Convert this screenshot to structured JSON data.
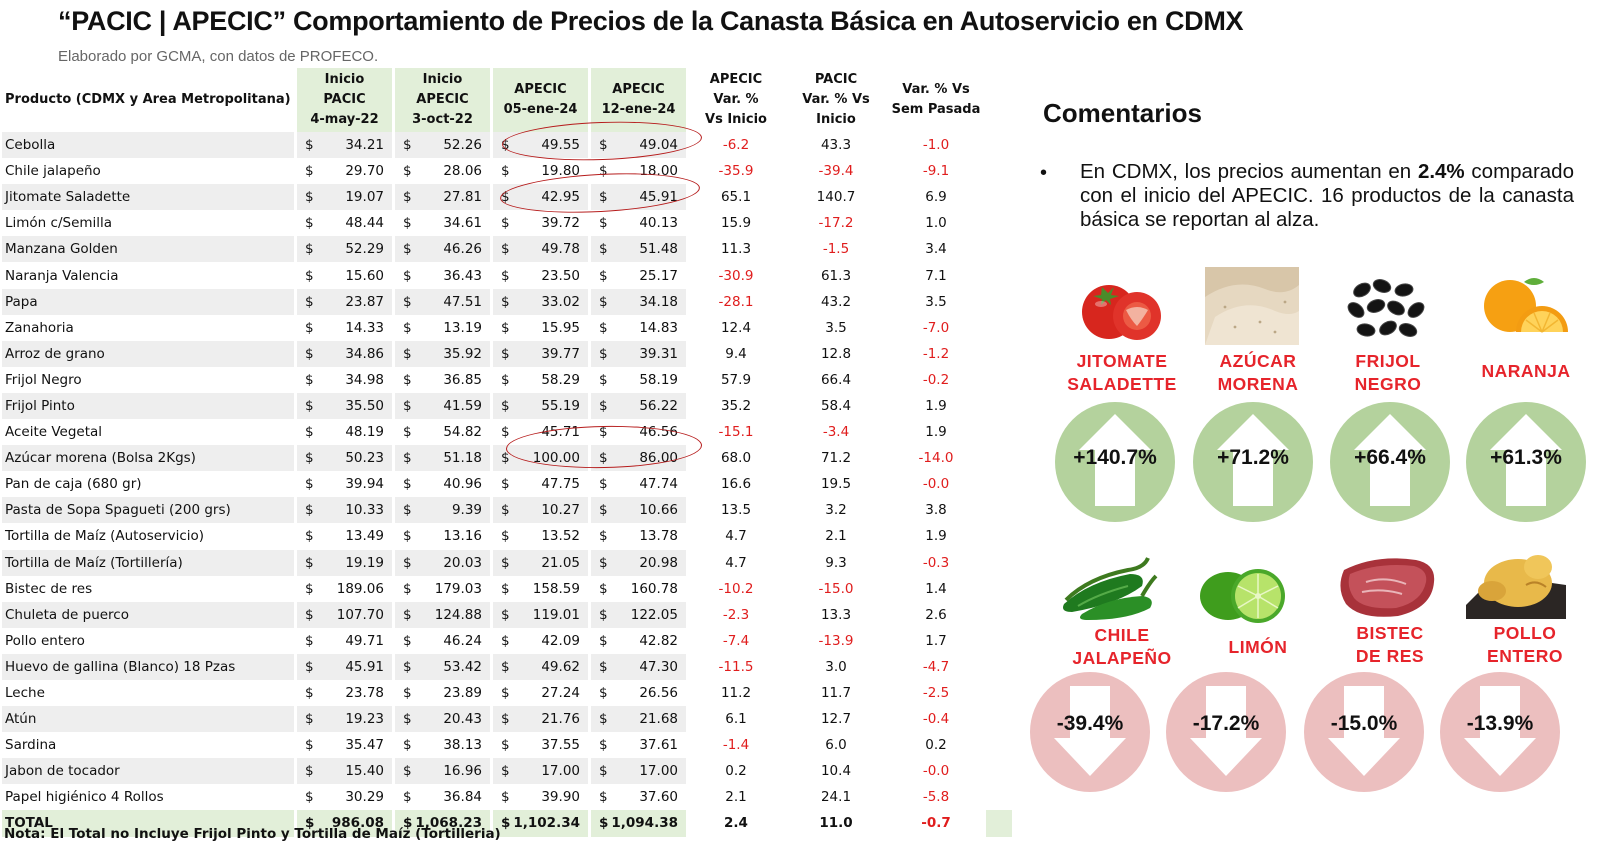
{
  "header": {
    "title": "“PACIC | APECIC” Comportamiento de Precios de la Canasta Básica en Autoservicio en CDMX",
    "subtitle": "Elaborado por GCMA, con datos de PROFECO."
  },
  "table": {
    "headers": {
      "product": "Producto (CDMX y Area Metropolitana)",
      "pacic": [
        "Inicio",
        "PACIC",
        "4-may-22"
      ],
      "apecic_start": [
        "Inicio",
        "APECIC",
        "3-oct-22"
      ],
      "apecic_05": [
        "APECIC",
        "05-ene-24"
      ],
      "apecic_12": [
        "APECIC",
        "12-ene-24"
      ],
      "var_apecic": [
        "APECIC",
        "Var. %",
        "Vs  Inicio"
      ],
      "var_pacic": [
        "PACIC",
        "Var. % Vs",
        "Inicio"
      ],
      "var_week": [
        "Var. % Vs",
        "Sem Pasada"
      ]
    },
    "currency": "$",
    "rows": [
      {
        "product": "Cebolla",
        "pacic": "34.21",
        "apecic_start": "52.26",
        "apecic_05": "49.55",
        "apecic_12": "49.04",
        "var_apecic": "-6.2",
        "var_pacic": "43.3",
        "var_week": "-1.0"
      },
      {
        "product": "Chile jalapeño",
        "pacic": "29.70",
        "apecic_start": "28.06",
        "apecic_05": "19.80",
        "apecic_12": "18.00",
        "var_apecic": "-35.9",
        "var_pacic": "-39.4",
        "var_week": "-9.1"
      },
      {
        "product": "Jitomate Saladette",
        "pacic": "19.07",
        "apecic_start": "27.81",
        "apecic_05": "42.95",
        "apecic_12": "45.91",
        "var_apecic": "65.1",
        "var_pacic": "140.7",
        "var_week": "6.9"
      },
      {
        "product": "Limón c/Semilla",
        "pacic": "48.44",
        "apecic_start": "34.61",
        "apecic_05": "39.72",
        "apecic_12": "40.13",
        "var_apecic": "15.9",
        "var_pacic": "-17.2",
        "var_week": "1.0"
      },
      {
        "product": "Manzana Golden",
        "pacic": "52.29",
        "apecic_start": "46.26",
        "apecic_05": "49.78",
        "apecic_12": "51.48",
        "var_apecic": "11.3",
        "var_pacic": "-1.5",
        "var_week": "3.4"
      },
      {
        "product": "Naranja Valencia",
        "pacic": "15.60",
        "apecic_start": "36.43",
        "apecic_05": "23.50",
        "apecic_12": "25.17",
        "var_apecic": "-30.9",
        "var_pacic": "61.3",
        "var_week": "7.1"
      },
      {
        "product": "Papa",
        "pacic": "23.87",
        "apecic_start": "47.51",
        "apecic_05": "33.02",
        "apecic_12": "34.18",
        "var_apecic": "-28.1",
        "var_pacic": "43.2",
        "var_week": "3.5"
      },
      {
        "product": "Zanahoria",
        "pacic": "14.33",
        "apecic_start": "13.19",
        "apecic_05": "15.95",
        "apecic_12": "14.83",
        "var_apecic": "12.4",
        "var_pacic": "3.5",
        "var_week": "-7.0"
      },
      {
        "product": "Arroz de grano",
        "pacic": "34.86",
        "apecic_start": "35.92",
        "apecic_05": "39.77",
        "apecic_12": "39.31",
        "var_apecic": "9.4",
        "var_pacic": "12.8",
        "var_week": "-1.2"
      },
      {
        "product": "Frijol Negro",
        "pacic": "34.98",
        "apecic_start": "36.85",
        "apecic_05": "58.29",
        "apecic_12": "58.19",
        "var_apecic": "57.9",
        "var_pacic": "66.4",
        "var_week": "-0.2"
      },
      {
        "product": "Frijol Pinto",
        "pacic": "35.50",
        "apecic_start": "41.59",
        "apecic_05": "55.19",
        "apecic_12": "56.22",
        "var_apecic": "35.2",
        "var_pacic": "58.4",
        "var_week": "1.9"
      },
      {
        "product": "Aceite Vegetal",
        "pacic": "48.19",
        "apecic_start": "54.82",
        "apecic_05": "45.71",
        "apecic_12": "46.56",
        "var_apecic": "-15.1",
        "var_pacic": "-3.4",
        "var_week": "1.9"
      },
      {
        "product": "Azúcar morena (Bolsa 2Kgs)",
        "pacic": "50.23",
        "apecic_start": "51.18",
        "apecic_05": "100.00",
        "apecic_12": "86.00",
        "var_apecic": "68.0",
        "var_pacic": "71.2",
        "var_week": "-14.0"
      },
      {
        "product": "Pan de caja (680 gr)",
        "pacic": "39.94",
        "apecic_start": "40.96",
        "apecic_05": "47.75",
        "apecic_12": "47.74",
        "var_apecic": "16.6",
        "var_pacic": "19.5",
        "var_week": "-0.0"
      },
      {
        "product": "Pasta de Sopa Spagueti (200 grs)",
        "pacic": "10.33",
        "apecic_start": "9.39",
        "apecic_05": "10.27",
        "apecic_12": "10.66",
        "var_apecic": "13.5",
        "var_pacic": "3.2",
        "var_week": "3.8"
      },
      {
        "product": "Tortilla de Maíz (Autoservicio)",
        "pacic": "13.49",
        "apecic_start": "13.16",
        "apecic_05": "13.52",
        "apecic_12": "13.78",
        "var_apecic": "4.7",
        "var_pacic": "2.1",
        "var_week": "1.9"
      },
      {
        "product": "Tortilla de Maíz (Tortillería)",
        "pacic": "19.19",
        "apecic_start": "20.03",
        "apecic_05": "21.05",
        "apecic_12": "20.98",
        "var_apecic": "4.7",
        "var_pacic": "9.3",
        "var_week": "-0.3"
      },
      {
        "product": "Bistec de res",
        "pacic": "189.06",
        "apecic_start": "179.03",
        "apecic_05": "158.59",
        "apecic_12": "160.78",
        "var_apecic": "-10.2",
        "var_pacic": "-15.0",
        "var_week": "1.4"
      },
      {
        "product": "Chuleta de puerco",
        "pacic": "107.70",
        "apecic_start": "124.88",
        "apecic_05": "119.01",
        "apecic_12": "122.05",
        "var_apecic": "-2.3",
        "var_pacic": "13.3",
        "var_week": "2.6"
      },
      {
        "product": "Pollo entero",
        "pacic": "49.71",
        "apecic_start": "46.24",
        "apecic_05": "42.09",
        "apecic_12": "42.82",
        "var_apecic": "-7.4",
        "var_pacic": "-13.9",
        "var_week": "1.7"
      },
      {
        "product": "Huevo de gallina (Blanco) 18 Pzas",
        "pacic": "45.91",
        "apecic_start": "53.42",
        "apecic_05": "49.62",
        "apecic_12": "47.30",
        "var_apecic": "-11.5",
        "var_pacic": "3.0",
        "var_week": "-4.7"
      },
      {
        "product": "Leche",
        "pacic": "23.78",
        "apecic_start": "23.89",
        "apecic_05": "27.24",
        "apecic_12": "26.56",
        "var_apecic": "11.2",
        "var_pacic": "11.7",
        "var_week": "-2.5"
      },
      {
        "product": "Atún",
        "pacic": "19.23",
        "apecic_start": "20.43",
        "apecic_05": "21.76",
        "apecic_12": "21.68",
        "var_apecic": "6.1",
        "var_pacic": "12.7",
        "var_week": "-0.4"
      },
      {
        "product": "Sardina",
        "pacic": "35.47",
        "apecic_start": "38.13",
        "apecic_05": "37.55",
        "apecic_12": "37.61",
        "var_apecic": "-1.4",
        "var_pacic": "6.0",
        "var_week": "0.2"
      },
      {
        "product": "Jabon de tocador",
        "pacic": "15.40",
        "apecic_start": "16.96",
        "apecic_05": "17.00",
        "apecic_12": "17.00",
        "var_apecic": "0.2",
        "var_pacic": "10.4",
        "var_week": "-0.0"
      },
      {
        "product": "Papel higiénico 4 Rollos",
        "pacic": "30.29",
        "apecic_start": "36.84",
        "apecic_05": "39.90",
        "apecic_12": "37.60",
        "var_apecic": "2.1",
        "var_pacic": "24.1",
        "var_week": "-5.8"
      }
    ],
    "total": {
      "product": "TOTAL",
      "pacic": "986.08",
      "apecic_start": "1,068.23",
      "apecic_05": "1,102.34",
      "apecic_12": "1,094.38",
      "var_apecic": "2.4",
      "var_pacic": "11.0",
      "var_week": "-0.7"
    },
    "note": "Nota: El Total no Incluye Frijol Pinto y Tortilla de Maíz (Tortilleria)"
  },
  "comments": {
    "title": "Comentarios",
    "bullet": "•",
    "text_before": "En CDMX, los precios aumentan en ",
    "highlight": "2.4%",
    "text_after": " comparado con el inicio del APECIC. 16 productos de la canasta básica se reportan al alza."
  },
  "colors": {
    "negative": "#e01d1d",
    "label_red": "#e6242b",
    "up_circle": "#b4d29d",
    "down_circle": "#ecbfbf",
    "header_green": "#e2efd9",
    "row_shade": "#eeeeee",
    "ellipse": "#b61c1c"
  },
  "highlights": {
    "up": [
      {
        "label": [
          "JITOMATE",
          "SALADETTE"
        ],
        "value": "+140.7%",
        "icon": "tomato-icon"
      },
      {
        "label": [
          "AZÚCAR",
          "MORENA"
        ],
        "value": "+71.2%",
        "icon": "sugar-icon"
      },
      {
        "label": [
          "FRIJOL",
          "NEGRO"
        ],
        "value": "+66.4%",
        "icon": "black-beans-icon"
      },
      {
        "label": [
          "NARANJA"
        ],
        "value": "+61.3%",
        "icon": "orange-icon"
      }
    ],
    "down": [
      {
        "label": [
          "CHILE",
          "JALAPEÑO"
        ],
        "value": "-39.4%",
        "icon": "jalapeno-icon"
      },
      {
        "label": [
          "LIMÓN"
        ],
        "value": "-17.2%",
        "icon": "lime-icon"
      },
      {
        "label": [
          "BISTEC",
          "DE RES"
        ],
        "value": "-15.0%",
        "icon": "steak-icon"
      },
      {
        "label": [
          "POLLO",
          "ENTERO"
        ],
        "value": "-13.9%",
        "icon": "chicken-icon"
      }
    ]
  }
}
